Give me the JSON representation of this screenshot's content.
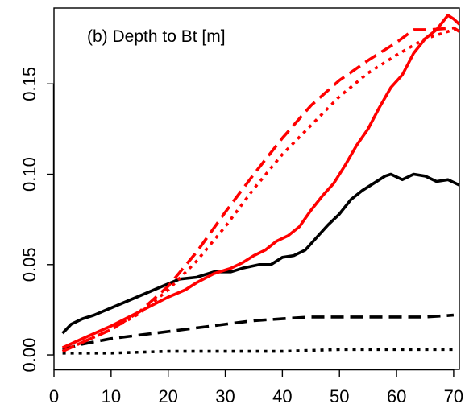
{
  "chart_data": {
    "type": "line",
    "title": "(b) Depth to Bt [m]",
    "xlabel": "",
    "ylabel": "",
    "xlim": [
      0,
      71
    ],
    "ylim": [
      -0.008,
      0.192
    ],
    "xticks": [
      0,
      10,
      20,
      30,
      40,
      50,
      60,
      70
    ],
    "xtick_labels": [
      "0",
      "10",
      "20",
      "30",
      "40",
      "50",
      "60",
      "70"
    ],
    "yticks": [
      0,
      0.05,
      0.1,
      0.15
    ],
    "ytick_labels": [
      "0.00",
      "0.05",
      "0.10",
      "0.15"
    ],
    "grid": false,
    "legend": "none",
    "series": [
      {
        "color": "#000000",
        "linestyle": "solid",
        "x": [
          1.5,
          3,
          5,
          7,
          10,
          13,
          16,
          19,
          22,
          25,
          28,
          31,
          33,
          36,
          38,
          40,
          42,
          44,
          46,
          48,
          50,
          52,
          54,
          56,
          58,
          59,
          61,
          63,
          65,
          67,
          69,
          71
        ],
        "y": [
          0.012,
          0.017,
          0.02,
          0.022,
          0.026,
          0.03,
          0.034,
          0.038,
          0.042,
          0.043,
          0.046,
          0.046,
          0.048,
          0.05,
          0.05,
          0.054,
          0.055,
          0.058,
          0.065,
          0.072,
          0.078,
          0.086,
          0.091,
          0.095,
          0.099,
          0.1,
          0.097,
          0.1,
          0.099,
          0.096,
          0.097,
          0.094
        ]
      },
      {
        "color": "#000000",
        "linestyle": "dashed",
        "x": [
          1.5,
          5,
          10,
          15,
          20,
          25,
          30,
          35,
          40,
          45,
          50,
          55,
          60,
          65,
          70
        ],
        "y": [
          0.003,
          0.006,
          0.009,
          0.011,
          0.013,
          0.015,
          0.017,
          0.019,
          0.02,
          0.021,
          0.021,
          0.021,
          0.021,
          0.021,
          0.022
        ]
      },
      {
        "color": "#000000",
        "linestyle": "dotted",
        "x": [
          1.5,
          10,
          20,
          30,
          40,
          50,
          60,
          70
        ],
        "y": [
          0.001,
          0.001,
          0.002,
          0.002,
          0.002,
          0.003,
          0.003,
          0.003
        ]
      },
      {
        "color": "#ff0000",
        "linestyle": "solid",
        "x": [
          1.5,
          5,
          10,
          15,
          20,
          23,
          25,
          28,
          31,
          33,
          35,
          37,
          39,
          41,
          43,
          45,
          47,
          49,
          51,
          53,
          55,
          57,
          59,
          61,
          63,
          65,
          67,
          69,
          70,
          71
        ],
        "y": [
          0.004,
          0.009,
          0.016,
          0.024,
          0.032,
          0.036,
          0.04,
          0.045,
          0.048,
          0.051,
          0.055,
          0.058,
          0.063,
          0.066,
          0.071,
          0.08,
          0.088,
          0.095,
          0.105,
          0.116,
          0.125,
          0.137,
          0.148,
          0.155,
          0.167,
          0.175,
          0.18,
          0.188,
          0.186,
          0.183
        ]
      },
      {
        "color": "#ff0000",
        "linestyle": "dashed",
        "x": [
          1.5,
          5,
          10,
          15,
          20,
          25,
          30,
          35,
          40,
          45,
          50,
          55,
          60,
          63,
          66,
          70,
          71
        ],
        "y": [
          0.002,
          0.007,
          0.014,
          0.024,
          0.038,
          0.057,
          0.079,
          0.1,
          0.12,
          0.138,
          0.152,
          0.163,
          0.173,
          0.18,
          0.18,
          0.181,
          0.179
        ]
      },
      {
        "color": "#ff0000",
        "linestyle": "dotted",
        "x": [
          1.5,
          5,
          10,
          15,
          20,
          25,
          30,
          35,
          40,
          45,
          50,
          55,
          60,
          65,
          70,
          71
        ],
        "y": [
          0.002,
          0.007,
          0.014,
          0.023,
          0.036,
          0.052,
          0.071,
          0.092,
          0.111,
          0.127,
          0.143,
          0.156,
          0.166,
          0.175,
          0.18,
          0.18
        ]
      }
    ]
  }
}
